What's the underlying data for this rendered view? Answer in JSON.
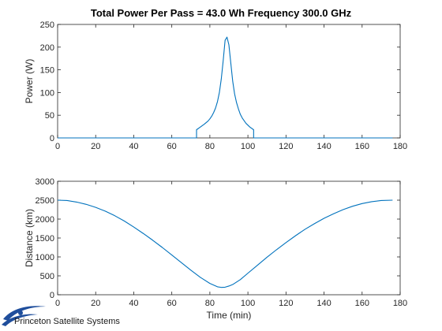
{
  "title": "Total Power Per Pass =  43.0 Wh Frequency 300.0 GHz",
  "brand": {
    "name": "Princeton Satellite Systems",
    "logo_icon": "swoosh-logo-icon",
    "logo_color": "#1f4e9c"
  },
  "colors": {
    "series": "#0072bd",
    "axes": "#262626"
  },
  "chart_data": [
    {
      "type": "line",
      "title": "",
      "xlabel": "",
      "ylabel": "Power (W)",
      "xlim": [
        0,
        180
      ],
      "ylim": [
        0,
        250
      ],
      "xticks": [
        0,
        20,
        40,
        60,
        80,
        100,
        120,
        140,
        160,
        180
      ],
      "yticks": [
        0,
        50,
        100,
        150,
        200,
        250
      ],
      "grid": false,
      "series": [
        {
          "x": [
            0,
            10,
            20,
            30,
            40,
            50,
            60,
            70,
            73,
            73,
            75,
            77,
            79,
            80,
            81,
            82,
            83,
            84,
            85,
            86,
            87,
            88,
            89,
            90,
            91,
            92,
            93,
            94,
            95,
            96,
            97,
            99,
            101,
            103,
            103,
            110,
            120,
            130,
            140,
            150,
            160,
            170,
            176
          ],
          "y": [
            0,
            0,
            0,
            0,
            0,
            0,
            0,
            0,
            0,
            18,
            24,
            30,
            37,
            42,
            48,
            56,
            66,
            80,
            100,
            130,
            170,
            215,
            222,
            205,
            165,
            125,
            97,
            78,
            64,
            52,
            44,
            32,
            24,
            18,
            0,
            0,
            0,
            0,
            0,
            0,
            0,
            0,
            0
          ]
        }
      ]
    },
    {
      "type": "line",
      "title": "",
      "xlabel": "Time (min)",
      "ylabel": "Distance (km)",
      "xlim": [
        0,
        180
      ],
      "ylim": [
        0,
        3000
      ],
      "xticks": [
        0,
        20,
        40,
        60,
        80,
        100,
        120,
        140,
        160,
        180
      ],
      "yticks": [
        0,
        500,
        1000,
        1500,
        2000,
        2500,
        3000
      ],
      "grid": false,
      "series": [
        {
          "x": [
            0,
            5,
            10,
            15,
            20,
            25,
            30,
            35,
            40,
            45,
            50,
            55,
            60,
            65,
            70,
            75,
            80,
            84,
            86,
            88,
            90,
            92,
            96,
            100,
            105,
            110,
            115,
            120,
            125,
            130,
            135,
            140,
            145,
            150,
            155,
            160,
            165,
            170,
            176
          ],
          "y": [
            2500,
            2490,
            2450,
            2390,
            2310,
            2210,
            2090,
            1950,
            1790,
            1620,
            1440,
            1250,
            1050,
            850,
            650,
            460,
            300,
            210,
            195,
            200,
            230,
            270,
            400,
            570,
            780,
            990,
            1190,
            1380,
            1560,
            1730,
            1880,
            2020,
            2140,
            2250,
            2340,
            2410,
            2460,
            2490,
            2500
          ]
        }
      ]
    }
  ]
}
